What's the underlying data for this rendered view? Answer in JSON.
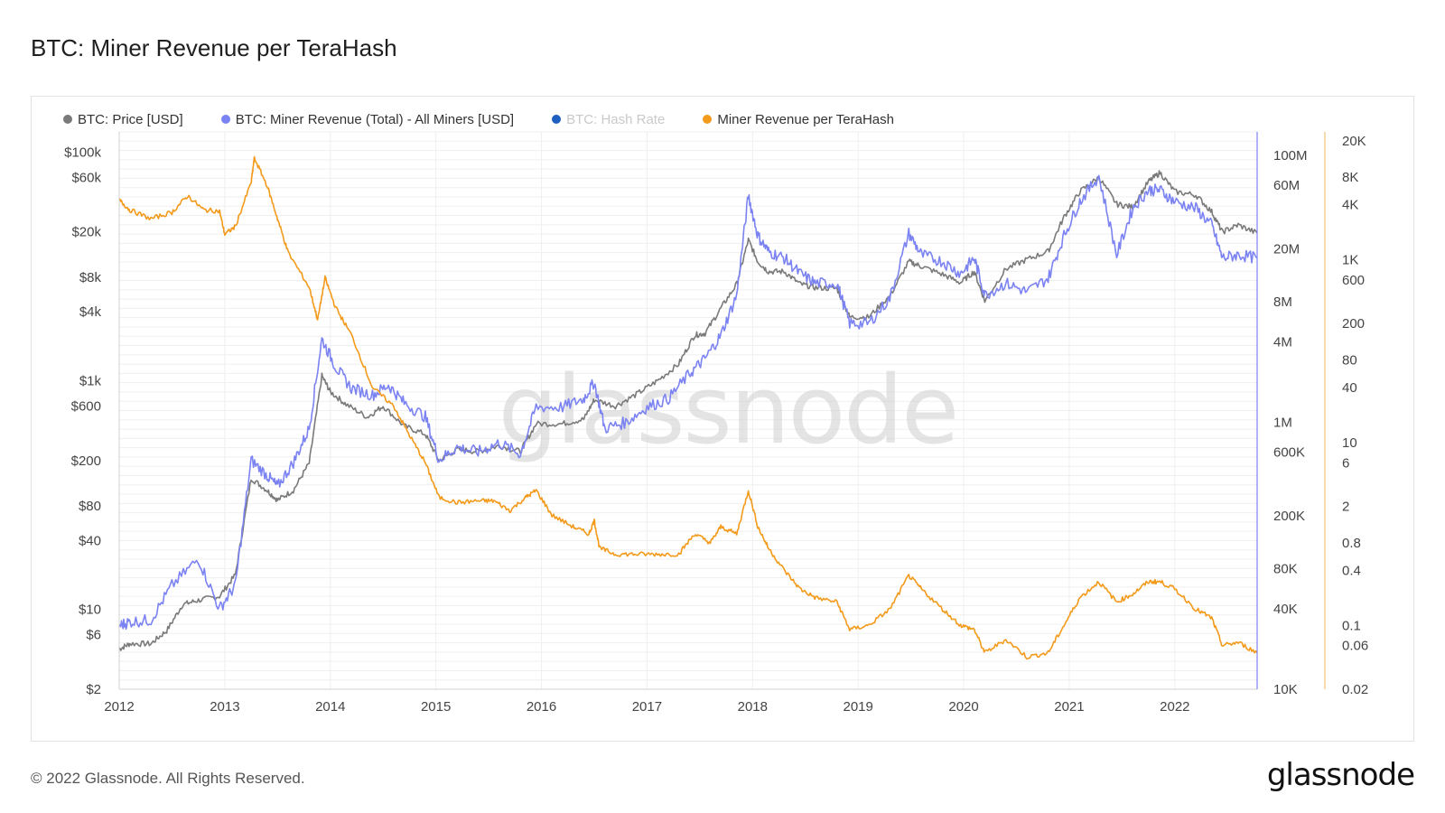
{
  "title": "BTC: Miner Revenue per TeraHash",
  "footer": {
    "copyright": "© 2022 Glassnode. All Rights Reserved.",
    "logo_text": "glassnode"
  },
  "watermark": "glassnode",
  "legend": [
    {
      "label": "BTC: Price [USD]",
      "color": "#7a7a7a",
      "enabled": true
    },
    {
      "label": "BTC: Miner Revenue (Total) - All Miners [USD]",
      "color": "#7b83f2",
      "enabled": true
    },
    {
      "label": "BTC: Hash Rate",
      "color": "#1f5fbf",
      "enabled": false
    },
    {
      "label": "Miner Revenue per TeraHash",
      "color": "#f39a1b",
      "enabled": true
    }
  ],
  "chart_data": {
    "type": "line",
    "x_ticks": [
      "2012",
      "2013",
      "2014",
      "2015",
      "2016",
      "2017",
      "2018",
      "2019",
      "2020",
      "2021",
      "2022"
    ],
    "x_range": [
      2012.0,
      2022.78
    ],
    "grid": true,
    "legend_position": "top-left",
    "axes": {
      "price": {
        "scale": "log",
        "range": [
          2,
          150000
        ],
        "ticks": [
          "$100k",
          "$60k",
          "$20k",
          "$8k",
          "$4k",
          "$1k",
          "$600",
          "$200",
          "$80",
          "$40",
          "$10",
          "$6",
          "$2"
        ],
        "tick_values": [
          100000,
          60000,
          20000,
          8000,
          4000,
          1000,
          600,
          200,
          80,
          40,
          10,
          6,
          2
        ]
      },
      "revenue": {
        "scale": "log",
        "range": [
          10000,
          150000000
        ],
        "ticks": [
          "100M",
          "60M",
          "20M",
          "8M",
          "4M",
          "1M",
          "600K",
          "200K",
          "80K",
          "40K",
          "10K"
        ],
        "tick_values": [
          100000000,
          60000000,
          20000000,
          8000000,
          4000000,
          1000000,
          600000,
          200000,
          80000,
          40000,
          10000
        ]
      },
      "rev_per_th": {
        "scale": "log",
        "range": [
          0.02,
          25000
        ],
        "ticks": [
          "20K",
          "8K",
          "4K",
          "1K",
          "600",
          "200",
          "80",
          "40",
          "10",
          "6",
          "2",
          "0.8",
          "0.4",
          "0.1",
          "0.06",
          "0.02"
        ],
        "tick_values": [
          20000,
          8000,
          4000,
          1000,
          600,
          200,
          80,
          40,
          10,
          6,
          2,
          0.8,
          0.4,
          0.1,
          0.06,
          0.02
        ]
      }
    },
    "series": [
      {
        "name": "BTC: Price [USD]",
        "axis": "price",
        "color": "#7a7a7a",
        "points": [
          [
            2012.0,
            4.5
          ],
          [
            2012.1,
            5
          ],
          [
            2012.3,
            5
          ],
          [
            2012.45,
            6.5
          ],
          [
            2012.6,
            11
          ],
          [
            2012.75,
            12
          ],
          [
            2012.95,
            13
          ],
          [
            2013.1,
            20
          ],
          [
            2013.25,
            140
          ],
          [
            2013.4,
            110
          ],
          [
            2013.5,
            90
          ],
          [
            2013.65,
            110
          ],
          [
            2013.8,
            190
          ],
          [
            2013.92,
            1100
          ],
          [
            2014.0,
            800
          ],
          [
            2014.15,
            620
          ],
          [
            2014.35,
            480
          ],
          [
            2014.5,
            600
          ],
          [
            2014.7,
            400
          ],
          [
            2014.9,
            340
          ],
          [
            2015.03,
            200
          ],
          [
            2015.2,
            250
          ],
          [
            2015.4,
            240
          ],
          [
            2015.6,
            270
          ],
          [
            2015.8,
            240
          ],
          [
            2015.95,
            420
          ],
          [
            2016.2,
            420
          ],
          [
            2016.4,
            460
          ],
          [
            2016.5,
            680
          ],
          [
            2016.7,
            600
          ],
          [
            2016.9,
            760
          ],
          [
            2017.1,
            1000
          ],
          [
            2017.3,
            1400
          ],
          [
            2017.45,
            2500
          ],
          [
            2017.55,
            2600
          ],
          [
            2017.7,
            4300
          ],
          [
            2017.85,
            7000
          ],
          [
            2017.96,
            17000
          ],
          [
            2018.05,
            11000
          ],
          [
            2018.15,
            9000
          ],
          [
            2018.3,
            9000
          ],
          [
            2018.45,
            7000
          ],
          [
            2018.6,
            6500
          ],
          [
            2018.8,
            6400
          ],
          [
            2018.92,
            3600
          ],
          [
            2019.1,
            3600
          ],
          [
            2019.3,
            5500
          ],
          [
            2019.48,
            11000
          ],
          [
            2019.6,
            10000
          ],
          [
            2019.8,
            8500
          ],
          [
            2019.97,
            7200
          ],
          [
            2020.1,
            9000
          ],
          [
            2020.2,
            5000
          ],
          [
            2020.4,
            9500
          ],
          [
            2020.6,
            11500
          ],
          [
            2020.8,
            13500
          ],
          [
            2020.95,
            27000
          ],
          [
            2021.1,
            45000
          ],
          [
            2021.28,
            60000
          ],
          [
            2021.45,
            35000
          ],
          [
            2021.6,
            33000
          ],
          [
            2021.75,
            55000
          ],
          [
            2021.86,
            66000
          ],
          [
            2022.0,
            45000
          ],
          [
            2022.2,
            42000
          ],
          [
            2022.35,
            30000
          ],
          [
            2022.45,
            20000
          ],
          [
            2022.6,
            23000
          ],
          [
            2022.78,
            19500
          ]
        ]
      },
      {
        "name": "BTC: Miner Revenue (Total) - All Miners [USD]",
        "axis": "revenue",
        "color": "#7b83f2",
        "points": [
          [
            2012.0,
            30000
          ],
          [
            2012.1,
            32000
          ],
          [
            2012.3,
            33000
          ],
          [
            2012.5,
            60000
          ],
          [
            2012.75,
            95000
          ],
          [
            2012.95,
            40000
          ],
          [
            2013.1,
            60000
          ],
          [
            2013.25,
            520000
          ],
          [
            2013.4,
            400000
          ],
          [
            2013.5,
            330000
          ],
          [
            2013.65,
            500000
          ],
          [
            2013.8,
            900000
          ],
          [
            2013.92,
            4200000
          ],
          [
            2014.05,
            2600000
          ],
          [
            2014.2,
            1800000
          ],
          [
            2014.4,
            1600000
          ],
          [
            2014.55,
            1900000
          ],
          [
            2014.7,
            1400000
          ],
          [
            2014.9,
            1100000
          ],
          [
            2015.03,
            520000
          ],
          [
            2015.2,
            650000
          ],
          [
            2015.4,
            600000
          ],
          [
            2015.6,
            700000
          ],
          [
            2015.8,
            580000
          ],
          [
            2015.95,
            1300000
          ],
          [
            2016.2,
            1300000
          ],
          [
            2016.4,
            1500000
          ],
          [
            2016.5,
            2000000
          ],
          [
            2016.6,
            900000
          ],
          [
            2016.8,
            1000000
          ],
          [
            2017.0,
            1300000
          ],
          [
            2017.2,
            1500000
          ],
          [
            2017.4,
            2300000
          ],
          [
            2017.55,
            3000000
          ],
          [
            2017.7,
            4500000
          ],
          [
            2017.85,
            9000000
          ],
          [
            2017.96,
            50000000
          ],
          [
            2018.05,
            25000000
          ],
          [
            2018.15,
            19000000
          ],
          [
            2018.3,
            17000000
          ],
          [
            2018.45,
            13000000
          ],
          [
            2018.6,
            11000000
          ],
          [
            2018.8,
            11000000
          ],
          [
            2018.92,
            5500000
          ],
          [
            2019.1,
            5500000
          ],
          [
            2019.3,
            8500000
          ],
          [
            2019.48,
            26000000
          ],
          [
            2019.6,
            18000000
          ],
          [
            2019.8,
            16000000
          ],
          [
            2019.97,
            13000000
          ],
          [
            2020.1,
            17000000
          ],
          [
            2020.2,
            9000000
          ],
          [
            2020.4,
            11000000
          ],
          [
            2020.6,
            9500000
          ],
          [
            2020.8,
            12000000
          ],
          [
            2020.95,
            25000000
          ],
          [
            2021.1,
            45000000
          ],
          [
            2021.28,
            70000000
          ],
          [
            2021.45,
            18000000
          ],
          [
            2021.6,
            40000000
          ],
          [
            2021.75,
            55000000
          ],
          [
            2021.86,
            55000000
          ],
          [
            2022.0,
            45000000
          ],
          [
            2022.2,
            40000000
          ],
          [
            2022.35,
            30000000
          ],
          [
            2022.45,
            17000000
          ],
          [
            2022.6,
            18000000
          ],
          [
            2022.78,
            17000000
          ]
        ]
      },
      {
        "name": "Miner Revenue per TeraHash",
        "axis": "rev_per_th",
        "color": "#f39a1b",
        "points": [
          [
            2012.0,
            4500
          ],
          [
            2012.1,
            3500
          ],
          [
            2012.3,
            2800
          ],
          [
            2012.5,
            3300
          ],
          [
            2012.65,
            5000
          ],
          [
            2012.8,
            3500
          ],
          [
            2012.95,
            3400
          ],
          [
            2013.0,
            1900
          ],
          [
            2013.1,
            2300
          ],
          [
            2013.25,
            7000
          ],
          [
            2013.28,
            13000
          ],
          [
            2013.4,
            6500
          ],
          [
            2013.5,
            2800
          ],
          [
            2013.6,
            1200
          ],
          [
            2013.8,
            500
          ],
          [
            2013.88,
            220
          ],
          [
            2013.95,
            630
          ],
          [
            2014.05,
            300
          ],
          [
            2014.2,
            150
          ],
          [
            2014.4,
            40
          ],
          [
            2014.6,
            25
          ],
          [
            2014.75,
            12
          ],
          [
            2014.9,
            6
          ],
          [
            2015.03,
            2.5
          ],
          [
            2015.2,
            2.2
          ],
          [
            2015.4,
            2.3
          ],
          [
            2015.55,
            2.3
          ],
          [
            2015.7,
            1.8
          ],
          [
            2015.85,
            2.5
          ],
          [
            2015.95,
            3.0
          ],
          [
            2016.1,
            1.6
          ],
          [
            2016.3,
            1.2
          ],
          [
            2016.45,
            1.0
          ],
          [
            2016.5,
            1.4
          ],
          [
            2016.55,
            0.7
          ],
          [
            2016.7,
            0.6
          ],
          [
            2016.9,
            0.6
          ],
          [
            2017.1,
            0.6
          ],
          [
            2017.3,
            0.6
          ],
          [
            2017.45,
            1.0
          ],
          [
            2017.6,
            0.8
          ],
          [
            2017.7,
            1.2
          ],
          [
            2017.85,
            1.0
          ],
          [
            2017.96,
            3.0
          ],
          [
            2018.05,
            1.2
          ],
          [
            2018.15,
            0.7
          ],
          [
            2018.3,
            0.4
          ],
          [
            2018.45,
            0.25
          ],
          [
            2018.6,
            0.2
          ],
          [
            2018.8,
            0.18
          ],
          [
            2018.92,
            0.09
          ],
          [
            2019.1,
            0.1
          ],
          [
            2019.3,
            0.15
          ],
          [
            2019.48,
            0.35
          ],
          [
            2019.6,
            0.25
          ],
          [
            2019.8,
            0.15
          ],
          [
            2019.97,
            0.1
          ],
          [
            2020.1,
            0.09
          ],
          [
            2020.2,
            0.05
          ],
          [
            2020.4,
            0.07
          ],
          [
            2020.6,
            0.045
          ],
          [
            2020.8,
            0.05
          ],
          [
            2020.95,
            0.1
          ],
          [
            2021.1,
            0.2
          ],
          [
            2021.28,
            0.3
          ],
          [
            2021.45,
            0.18
          ],
          [
            2021.6,
            0.22
          ],
          [
            2021.75,
            0.3
          ],
          [
            2021.86,
            0.3
          ],
          [
            2022.0,
            0.25
          ],
          [
            2022.2,
            0.15
          ],
          [
            2022.35,
            0.12
          ],
          [
            2022.45,
            0.06
          ],
          [
            2022.6,
            0.065
          ],
          [
            2022.78,
            0.05
          ]
        ]
      }
    ]
  }
}
